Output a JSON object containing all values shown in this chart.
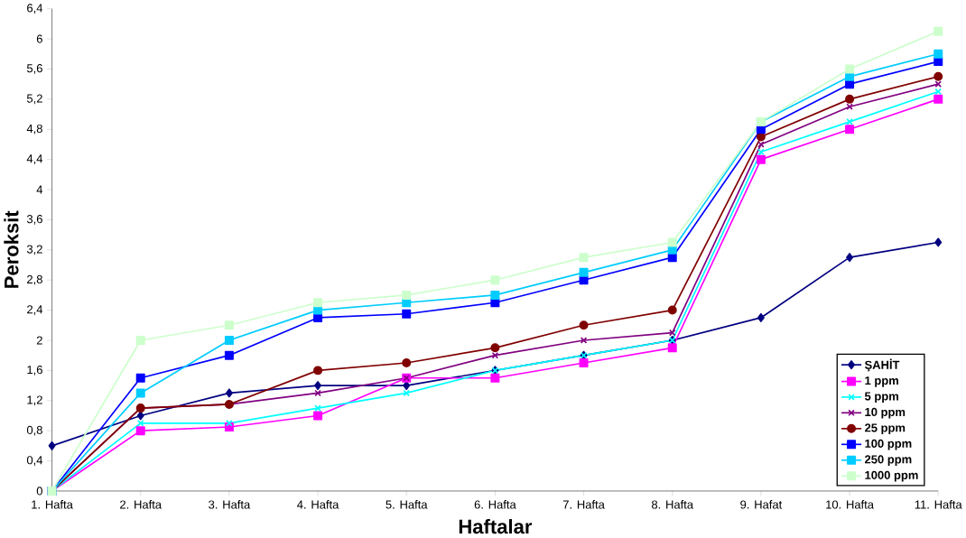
{
  "chart_data": {
    "type": "line",
    "xlabel": "Haftalar",
    "ylabel": "Peroksit",
    "categories": [
      "1. Hafta",
      "2. Hafta",
      "3. Hafta",
      "4. Hafta",
      "5. Hafta",
      "6. Hafta",
      "7. Hafta",
      "8. Hafta",
      "9. Hafat",
      "10. Hafta",
      "11. Hafta"
    ],
    "ylim": [
      0,
      6.4
    ],
    "yticks": [
      0,
      {
        "value": 0.4,
        "label": "0,4"
      },
      {
        "value": 0.8,
        "label": "0,8"
      },
      {
        "value": 1.2,
        "label": "1,2"
      },
      {
        "value": 1.6,
        "label": "1,6"
      },
      2,
      {
        "value": 2.4,
        "label": "2,4"
      },
      {
        "value": 2.8,
        "label": "2,8"
      },
      {
        "value": 3.2,
        "label": "3,2"
      },
      {
        "value": 3.6,
        "label": "3,6"
      },
      4,
      {
        "value": 4.4,
        "label": "4,4"
      },
      {
        "value": 4.8,
        "label": "4,8"
      },
      {
        "value": 5.2,
        "label": "5,2"
      },
      {
        "value": 5.6,
        "label": "5,6"
      },
      6,
      {
        "value": 6.4,
        "label": "6,4"
      }
    ],
    "grid": false,
    "legend": "bottom right",
    "series": [
      {
        "name": "ŞAHİT",
        "color": "#000080",
        "marker": "diamond",
        "values": [
          0.6,
          1.0,
          1.3,
          1.4,
          1.4,
          1.6,
          1.8,
          2.0,
          2.3,
          3.1,
          3.3
        ]
      },
      {
        "name": "1 ppm",
        "color": "#ff00ff",
        "marker": "square",
        "values": [
          0,
          0.8,
          0.85,
          1.0,
          1.5,
          1.5,
          1.7,
          1.9,
          4.4,
          4.8,
          5.2
        ]
      },
      {
        "name": "5 ppm",
        "color": "#00ffff",
        "marker": "cross",
        "values": [
          0,
          0.9,
          0.9,
          1.1,
          1.3,
          1.6,
          1.8,
          2.0,
          4.5,
          4.9,
          5.3
        ]
      },
      {
        "name": "10 ppm",
        "color": "#800080",
        "marker": "cross",
        "values": [
          0,
          1.1,
          1.15,
          1.3,
          1.5,
          1.8,
          2.0,
          2.1,
          4.6,
          5.1,
          5.4
        ]
      },
      {
        "name": "25 ppm",
        "color": "#800000",
        "marker": "circle",
        "values": [
          0,
          1.1,
          1.15,
          1.6,
          1.7,
          1.9,
          2.2,
          2.4,
          4.7,
          5.2,
          5.5
        ]
      },
      {
        "name": "100 ppm",
        "color": "#0000ff",
        "marker": "square",
        "values": [
          0,
          1.5,
          1.8,
          2.3,
          2.35,
          2.5,
          2.8,
          3.1,
          4.8,
          5.4,
          5.7
        ]
      },
      {
        "name": "250 ppm",
        "color": "#00ccff",
        "marker": "square",
        "values": [
          0,
          1.3,
          2.0,
          2.4,
          2.5,
          2.6,
          2.9,
          3.2,
          4.9,
          5.5,
          5.8
        ]
      },
      {
        "name": "1000 ppm",
        "color": "#ccffcc",
        "marker": "square",
        "values": [
          0,
          2.0,
          2.2,
          2.5,
          2.6,
          2.8,
          3.1,
          3.3,
          4.9,
          5.6,
          6.1
        ]
      }
    ]
  }
}
